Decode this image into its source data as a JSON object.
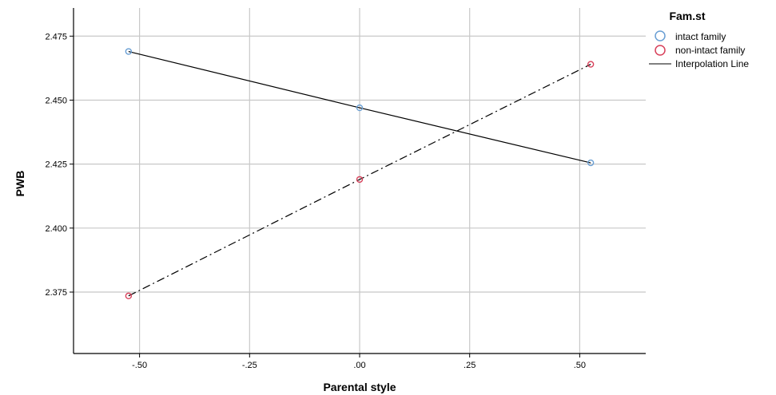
{
  "chart_data": {
    "type": "line",
    "title": "",
    "xlabel": "Parental style",
    "ylabel": "PWB",
    "xlim": [
      -0.65,
      0.65
    ],
    "ylim": [
      2.351,
      2.486
    ],
    "x_ticks": [
      -0.5,
      -0.25,
      0.0,
      0.25,
      0.5
    ],
    "x_tick_labels": [
      "-.50",
      "-.25",
      ".00",
      ".25",
      ".50"
    ],
    "y_ticks": [
      2.375,
      2.4,
      2.425,
      2.45,
      2.475
    ],
    "y_tick_labels": [
      "2.375",
      "2.400",
      "2.425",
      "2.450",
      "2.475"
    ],
    "grid": true,
    "legend": {
      "title": "Fam.st",
      "position": "top-right",
      "entries": [
        "intact family",
        "non-intact family",
        "Interpolation Line"
      ]
    },
    "series": [
      {
        "name": "intact family",
        "color": "#6a9fd4",
        "line": "solid",
        "x": [
          -0.525,
          0.0,
          0.525
        ],
        "y": [
          2.469,
          2.447,
          2.4255
        ]
      },
      {
        "name": "non-intact family",
        "color": "#d8405a",
        "line": "dashdot",
        "x": [
          -0.525,
          0.0,
          0.525
        ],
        "y": [
          2.3735,
          2.419,
          2.464
        ]
      }
    ]
  }
}
